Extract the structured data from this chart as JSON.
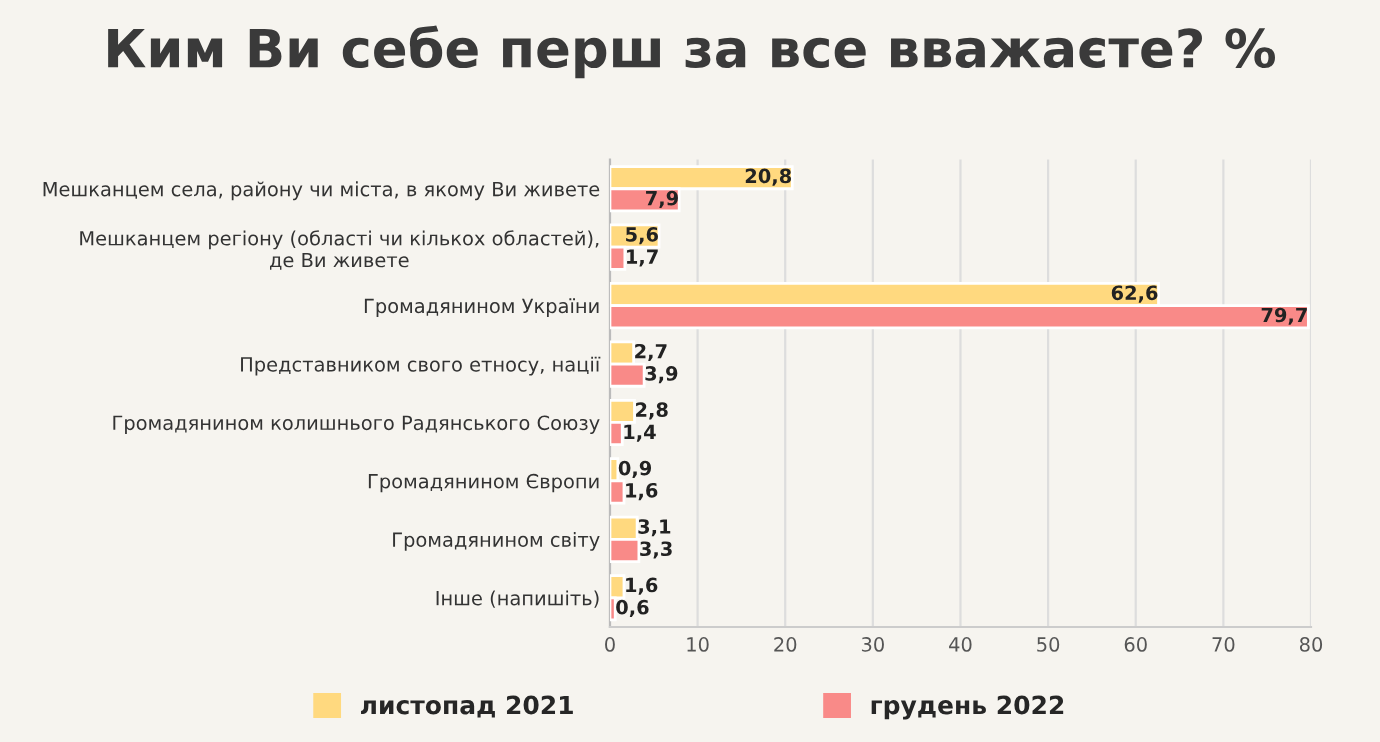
{
  "chart_data": {
    "type": "bar",
    "orientation": "horizontal",
    "title": "Ким Ви себе перш за все вважаєте? %",
    "categories": [
      "Мешканцем села, району чи міста, в якому Ви живете",
      "Мешканцем регіону (області чи кількох областей),\nде Ви живете",
      "Громадянином України",
      "Представником свого етносу, нації",
      "Громадянином колишнього Радянського Союзу",
      "Громадянином Європи",
      "Громадянином світу",
      "Інше (напишіть)"
    ],
    "series": [
      {
        "name": "листопад 2021",
        "color": "#ffd97f",
        "values": [
          20.8,
          5.6,
          62.6,
          2.7,
          2.8,
          0.9,
          3.1,
          1.6
        ],
        "value_labels": [
          "20,8",
          "5,6",
          "62,6",
          "2,7",
          "2,8",
          "0,9",
          "3,1",
          "1,6"
        ]
      },
      {
        "name": "грудень 2022",
        "color": "#f98a88",
        "values": [
          7.9,
          1.7,
          79.7,
          3.9,
          1.4,
          1.6,
          3.3,
          0.6
        ],
        "value_labels": [
          "7,9",
          "1,7",
          "79,7",
          "3,9",
          "1,4",
          "1,6",
          "3,3",
          "0,6"
        ]
      }
    ],
    "xlim": [
      0,
      80
    ],
    "xticks": [
      0,
      10,
      20,
      30,
      40,
      50,
      60,
      70,
      80
    ],
    "grid": "x",
    "legend": "bottom"
  }
}
